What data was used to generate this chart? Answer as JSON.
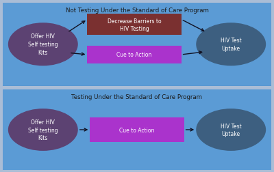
{
  "fig_width": 4.0,
  "fig_height": 2.53,
  "fig_bg": "#aabdd6",
  "panel_bg": "#5b9bd5",
  "panel_edge": "#3a7abf",
  "circle_left_color": "#5c4272",
  "circle_right_color": "#3d5f80",
  "rect_barrier_color": "#7a3030",
  "rect_cue_color_top": "#aa33cc",
  "rect_cue_color_bot": "#aa33cc",
  "text_white": "#ffffff",
  "text_dark": "#1a1a1a",
  "title_top": "Not Testing Under the Standard of Care Program",
  "title_bot": "Testing Under the Standard of Care Program",
  "left_text": "Offer HIV\nSelf testing\nKits",
  "right_text": "HIV Test\nUptake",
  "barrier_text": "Decrease Barriers to\nHIV Testing",
  "cue_text": "Cue to Action",
  "arrow_color": "#111122"
}
